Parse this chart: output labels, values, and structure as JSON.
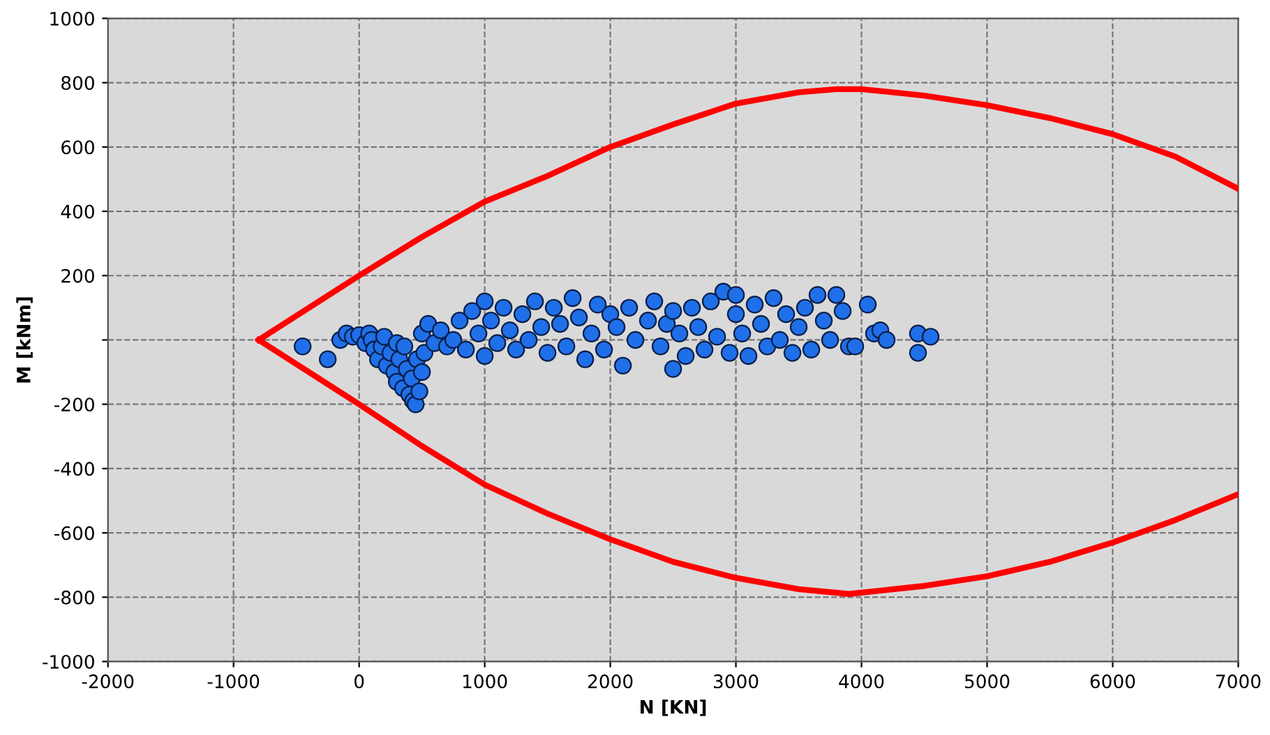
{
  "chart_data": {
    "type": "scatter",
    "xlabel": "N [KN]",
    "ylabel": "M [kNm]",
    "xlim": [
      -2000,
      7000
    ],
    "xticks": [
      -2000,
      -1000,
      0,
      1000,
      2000,
      3000,
      4000,
      5000,
      6000,
      7000
    ],
    "ylim": [
      -1000,
      1000
    ],
    "yticks": [
      -1000,
      -800,
      -600,
      -400,
      -200,
      {
        "value": 0,
        "label": null
      },
      200,
      400,
      600,
      800,
      1000
    ],
    "grid": true,
    "series": [
      {
        "type": "line",
        "color": "#ff0000",
        "x": [
          -800,
          0,
          500,
          1000,
          1500,
          2000,
          2500,
          3000,
          3500,
          3800,
          4000,
          4500,
          5000,
          5500,
          6000,
          6500,
          7000
        ],
        "values": [
          0,
          200,
          320,
          430,
          510,
          600,
          670,
          735,
          770,
          780,
          780,
          760,
          730,
          690,
          640,
          570,
          470
        ]
      },
      {
        "type": "line",
        "color": "#ff0000",
        "x": [
          -800,
          0,
          500,
          1000,
          1500,
          2000,
          2500,
          3000,
          3500,
          3900,
          4500,
          5000,
          5500,
          6000,
          6500,
          7000
        ],
        "values": [
          0,
          -200,
          -330,
          -450,
          -540,
          -620,
          -690,
          -740,
          -775,
          -790,
          -765,
          -735,
          -690,
          -630,
          -560,
          -480
        ]
      },
      {
        "marker": "circle",
        "color": "#1f6fe8",
        "x": [
          -450,
          -250,
          -150,
          -100,
          -50,
          0,
          50,
          80,
          100,
          120,
          150,
          180,
          200,
          220,
          250,
          280,
          300,
          300,
          320,
          350,
          360,
          380,
          400,
          420,
          430,
          450,
          460,
          480,
          500,
          500,
          520,
          550,
          600,
          650,
          700,
          750,
          800,
          850,
          900,
          950,
          1000,
          1000,
          1050,
          1100,
          1150,
          1200,
          1250,
          1300,
          1350,
          1400,
          1450,
          1500,
          1550,
          1600,
          1650,
          1700,
          1750,
          1800,
          1850,
          1900,
          1950,
          2000,
          2050,
          2100,
          2150,
          2200,
          2300,
          2350,
          2400,
          2450,
          2500,
          2500,
          2550,
          2600,
          2650,
          2700,
          2750,
          2800,
          2850,
          2900,
          2950,
          3000,
          3000,
          3050,
          3100,
          3150,
          3200,
          3250,
          3300,
          3350,
          3400,
          3450,
          3500,
          3550,
          3600,
          3650,
          3700,
          3750,
          3800,
          3850,
          3900,
          3950,
          4050,
          4100,
          4150,
          4200,
          4450,
          4450,
          4550
        ],
        "values": [
          -20,
          -60,
          0,
          20,
          10,
          15,
          -10,
          20,
          0,
          -30,
          -60,
          -20,
          10,
          -80,
          -40,
          -100,
          -10,
          -130,
          -60,
          -150,
          -20,
          -90,
          -170,
          -120,
          -190,
          -200,
          -60,
          -160,
          -100,
          20,
          -40,
          50,
          -10,
          30,
          -20,
          0,
          60,
          -30,
          90,
          20,
          -50,
          120,
          60,
          -10,
          100,
          30,
          -30,
          80,
          0,
          120,
          40,
          -40,
          100,
          50,
          -20,
          130,
          70,
          -60,
          20,
          110,
          -30,
          80,
          40,
          -80,
          100,
          0,
          60,
          120,
          -20,
          50,
          -90,
          90,
          20,
          -50,
          100,
          40,
          -30,
          120,
          10,
          150,
          -40,
          80,
          140,
          20,
          -50,
          110,
          50,
          -20,
          130,
          0,
          80,
          -40,
          40,
          100,
          -30,
          140,
          60,
          0,
          140,
          90,
          -20,
          -20,
          110,
          20,
          30,
          0,
          20,
          -40,
          10
        ]
      }
    ]
  }
}
